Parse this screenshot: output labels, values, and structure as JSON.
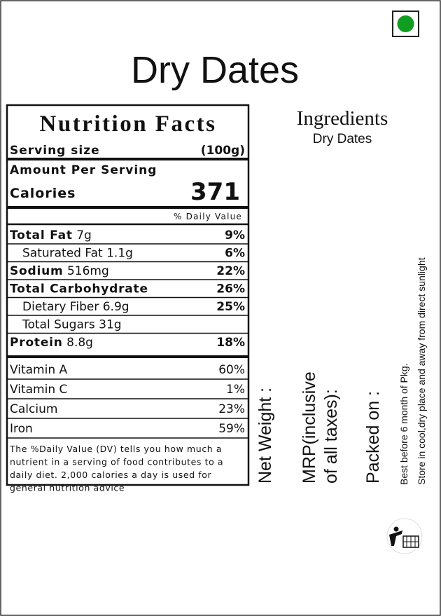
{
  "header": {
    "title": "Dry Dates"
  },
  "nutrition": {
    "title": "Nutrition Facts",
    "serving_label": "Serving size",
    "serving_value": "(100g)",
    "amount_label": "Amount Per Serving",
    "calories_label": "Calories",
    "calories_value": "371",
    "dv_header": "% Daily Value",
    "rows": [
      {
        "label": "Total Fat",
        "amount": "7g",
        "dv": "9%",
        "bold": true,
        "indent": false
      },
      {
        "label": "Saturated Fat",
        "amount": "1.1g",
        "dv": "6%",
        "bold": false,
        "indent": true
      },
      {
        "label": "Sodium",
        "amount": "516mg",
        "dv": "22%",
        "bold": true,
        "indent": false
      },
      {
        "label": "Total Carbohydrate",
        "amount": "",
        "dv": "26%",
        "bold": true,
        "indent": false
      },
      {
        "label": "Dietary Fiber",
        "amount": "6.9g",
        "dv": "25%",
        "bold": false,
        "indent": true
      },
      {
        "label": "Total Sugars",
        "amount": "31g",
        "dv": "",
        "bold": false,
        "indent": true
      },
      {
        "label": "Protein",
        "amount": "8.8g",
        "dv": "18%",
        "bold": true,
        "indent": false
      }
    ],
    "vitamins": [
      {
        "label": "Vitamin A",
        "dv": "60%"
      },
      {
        "label": "Vitamin C",
        "dv": "1%"
      },
      {
        "label": "Calcium",
        "dv": "23%"
      },
      {
        "label": "Iron",
        "dv": "59%"
      }
    ],
    "footnote": [
      "The %Daily Value (DV) tells you how much a",
      "nutrient in a serving of food contributes to a",
      "daily diet. 2,000 calories a day is used for",
      "general nutrition advice"
    ]
  },
  "ingredients": {
    "heading": "Ingredients",
    "text": "Dry Dates"
  },
  "side": {
    "net_weight": "Net Weight  :",
    "mrp": [
      "MRP(inclusive",
      "of all taxes):"
    ],
    "packed_on": "Packed on  :",
    "best_before": "Best before 6 month of Pkg.",
    "storage": "Store in cool,dry place and away from direct sunlight"
  }
}
